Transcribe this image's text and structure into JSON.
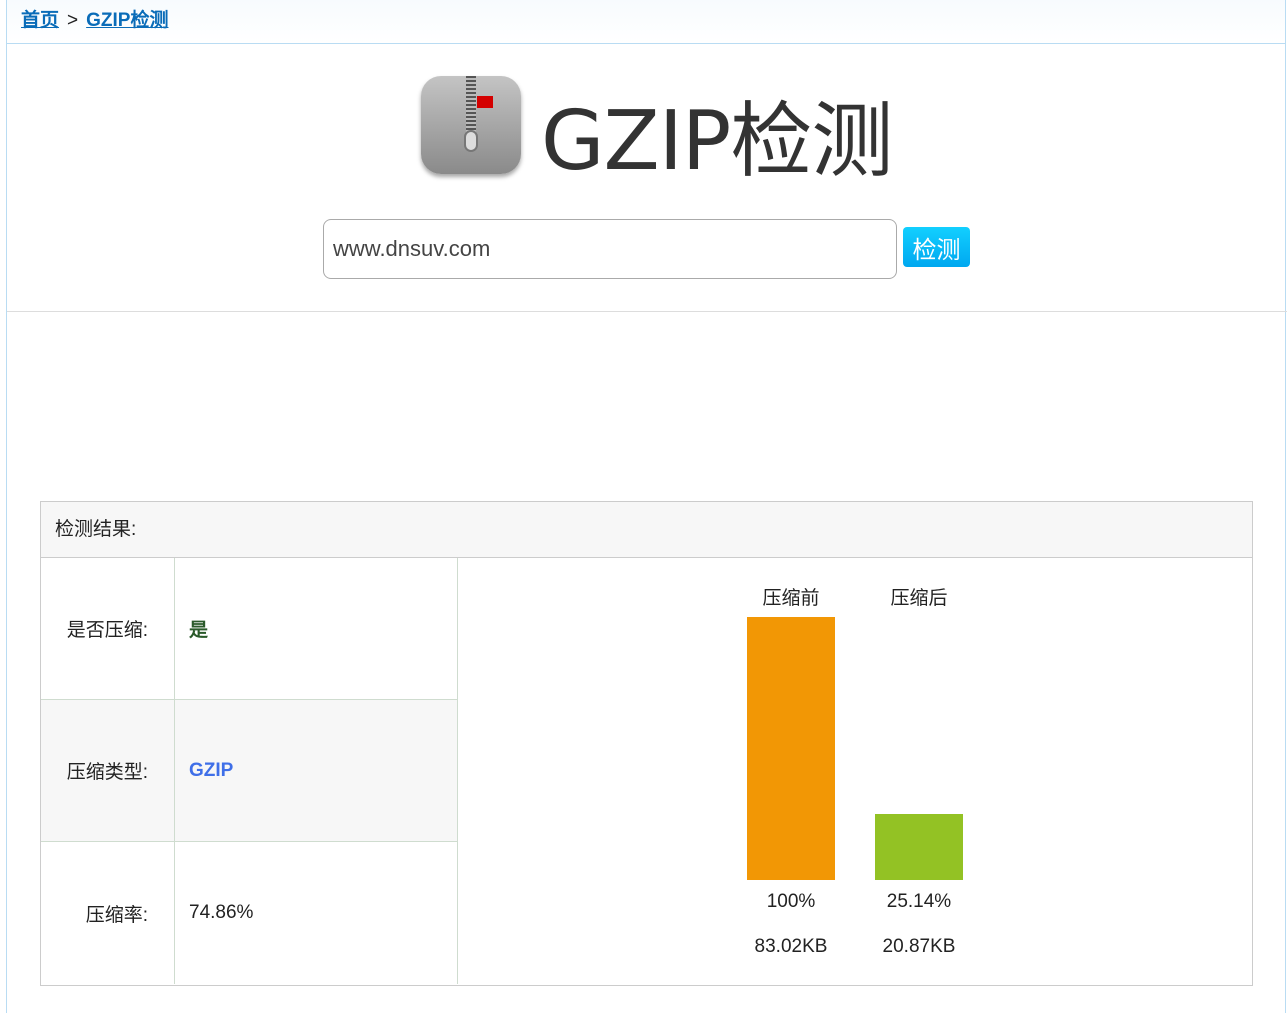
{
  "breadcrumb": {
    "home": "首页",
    "separator": ">",
    "current": "GZIP检测"
  },
  "header": {
    "title": "GZIP检测",
    "logo_icon": "zip-archive-icon"
  },
  "search": {
    "value": "www.dnsuv.com",
    "button": "检测"
  },
  "result": {
    "heading": "检测结果:",
    "rows": [
      {
        "label": "是否压缩:",
        "value": "是",
        "color": "#2a5a2a"
      },
      {
        "label": "压缩类型:",
        "value": "GZIP",
        "color": "#3f6fe8"
      },
      {
        "label": "压缩率:",
        "value": "74.86%",
        "color": "#222222"
      }
    ]
  },
  "chart_data": {
    "type": "bar",
    "categories": [
      "压缩前",
      "压缩后"
    ],
    "values": [
      100,
      25.14
    ],
    "value_labels": [
      "100%",
      "25.14%"
    ],
    "size_labels": [
      "83.02KB",
      "20.87KB"
    ],
    "colors": [
      "#f29705",
      "#93c224"
    ],
    "ylim": [
      0,
      100
    ]
  }
}
